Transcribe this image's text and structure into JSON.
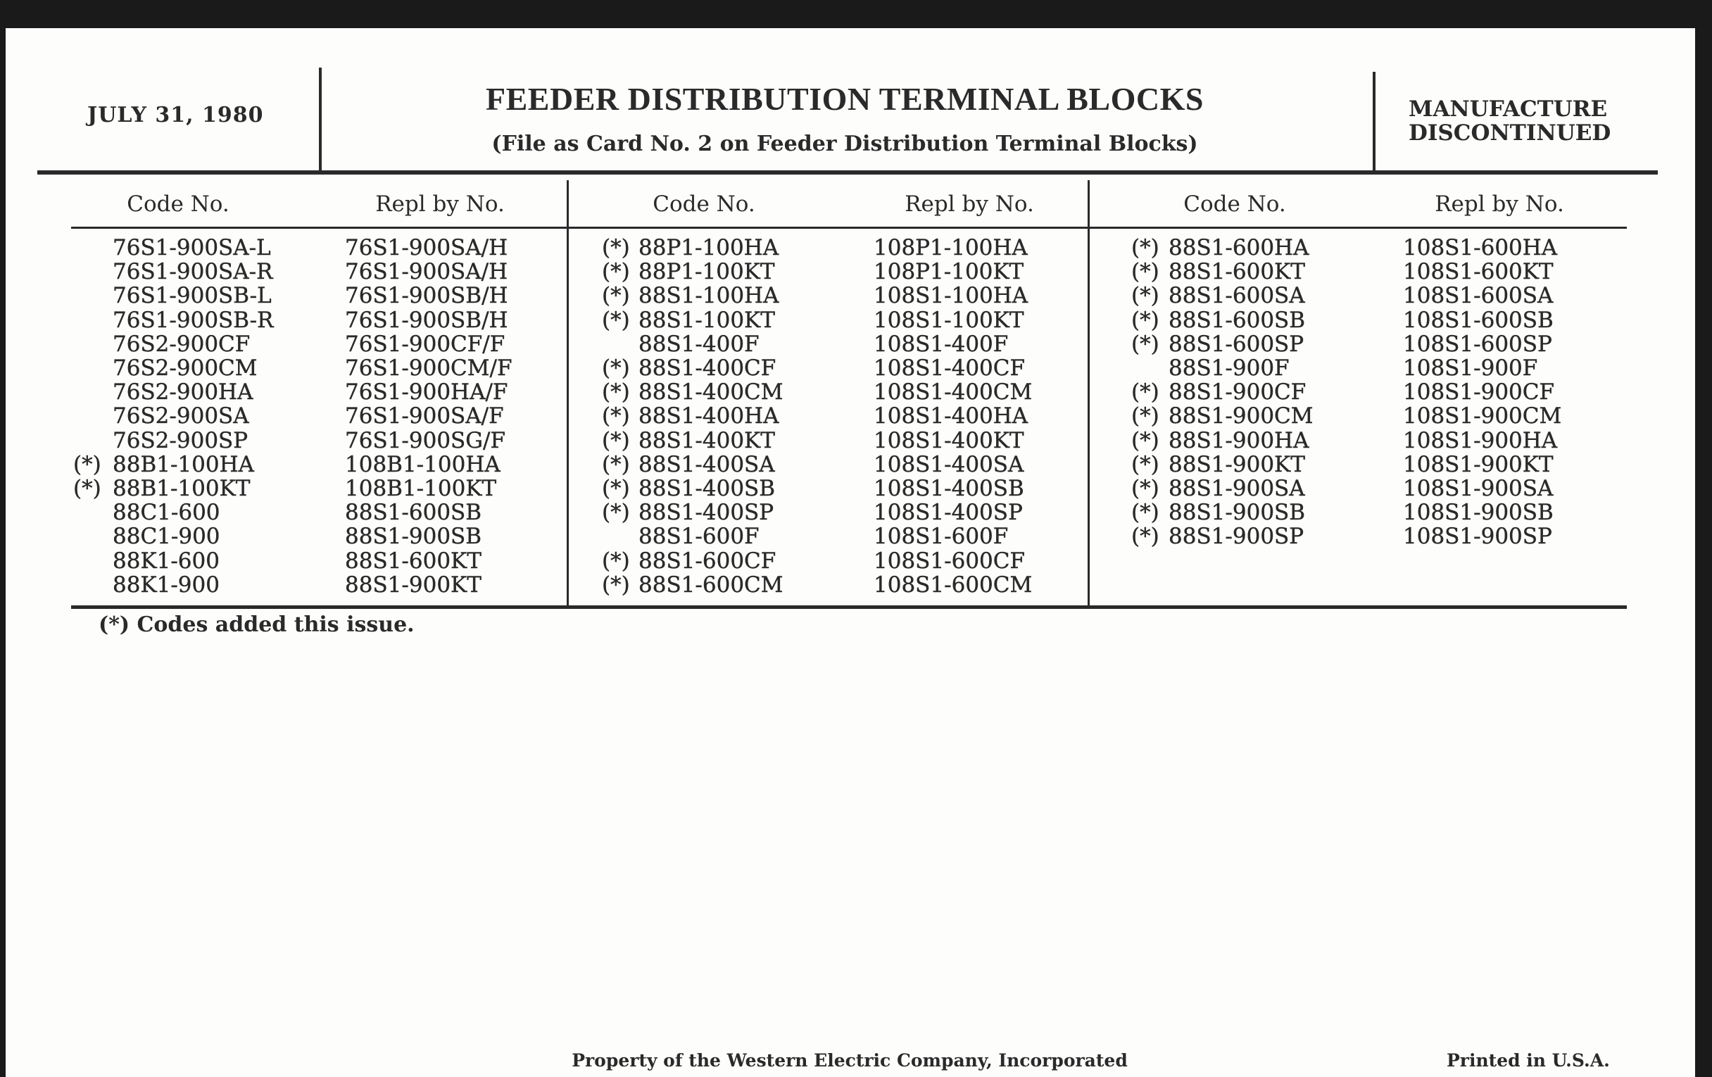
{
  "header": {
    "date": "JULY 31, 1980",
    "title": "FEEDER DISTRIBUTION TERMINAL BLOCKS",
    "subtitle": "(File as Card No. 2 on Feeder Distribution Terminal Blocks)",
    "status_line1": "MANUFACTURE",
    "status_line2": "DISCONTINUED"
  },
  "table": {
    "headers": {
      "code": "Code No.",
      "repl": "Repl by No."
    },
    "columns": [
      [
        {
          "mark": "",
          "code": "76S1-900SA-L",
          "repl": "76S1-900SA/H"
        },
        {
          "mark": "",
          "code": "76S1-900SA-R",
          "repl": "76S1-900SA/H"
        },
        {
          "mark": "",
          "code": "76S1-900SB-L",
          "repl": "76S1-900SB/H"
        },
        {
          "mark": "",
          "code": "76S1-900SB-R",
          "repl": "76S1-900SB/H"
        },
        {
          "mark": "",
          "code": "76S2-900CF",
          "repl": "76S1-900CF/F"
        },
        {
          "mark": "",
          "code": "76S2-900CM",
          "repl": "76S1-900CM/F"
        },
        {
          "mark": "",
          "code": "76S2-900HA",
          "repl": "76S1-900HA/F"
        },
        {
          "mark": "",
          "code": "76S2-900SA",
          "repl": "76S1-900SA/F"
        },
        {
          "mark": "",
          "code": "76S2-900SP",
          "repl": "76S1-900SG/F"
        },
        {
          "mark": "(*)",
          "code": "88B1-100HA",
          "repl": "108B1-100HA"
        },
        {
          "mark": "(*)",
          "code": "88B1-100KT",
          "repl": "108B1-100KT"
        },
        {
          "mark": "",
          "code": "88C1-600",
          "repl": "88S1-600SB"
        },
        {
          "mark": "",
          "code": "88C1-900",
          "repl": "88S1-900SB"
        },
        {
          "mark": "",
          "code": "88K1-600",
          "repl": "88S1-600KT"
        },
        {
          "mark": "",
          "code": "88K1-900",
          "repl": "88S1-900KT"
        }
      ],
      [
        {
          "mark": "(*)",
          "code": "88P1-100HA",
          "repl": "108P1-100HA"
        },
        {
          "mark": "(*)",
          "code": "88P1-100KT",
          "repl": "108P1-100KT"
        },
        {
          "mark": "(*)",
          "code": "88S1-100HA",
          "repl": "108S1-100HA"
        },
        {
          "mark": "(*)",
          "code": "88S1-100KT",
          "repl": "108S1-100KT"
        },
        {
          "mark": "",
          "code": "88S1-400F",
          "repl": "108S1-400F"
        },
        {
          "mark": "(*)",
          "code": "88S1-400CF",
          "repl": "108S1-400CF"
        },
        {
          "mark": "(*)",
          "code": "88S1-400CM",
          "repl": "108S1-400CM"
        },
        {
          "mark": "(*)",
          "code": "88S1-400HA",
          "repl": "108S1-400HA"
        },
        {
          "mark": "(*)",
          "code": "88S1-400KT",
          "repl": "108S1-400KT"
        },
        {
          "mark": "(*)",
          "code": "88S1-400SA",
          "repl": "108S1-400SA"
        },
        {
          "mark": "(*)",
          "code": "88S1-400SB",
          "repl": "108S1-400SB"
        },
        {
          "mark": "(*)",
          "code": "88S1-400SP",
          "repl": "108S1-400SP"
        },
        {
          "mark": "",
          "code": "88S1-600F",
          "repl": "108S1-600F"
        },
        {
          "mark": "(*)",
          "code": "88S1-600CF",
          "repl": "108S1-600CF"
        },
        {
          "mark": "(*)",
          "code": "88S1-600CM",
          "repl": "108S1-600CM"
        }
      ],
      [
        {
          "mark": "(*)",
          "code": "88S1-600HA",
          "repl": "108S1-600HA"
        },
        {
          "mark": "(*)",
          "code": "88S1-600KT",
          "repl": "108S1-600KT"
        },
        {
          "mark": "(*)",
          "code": "88S1-600SA",
          "repl": "108S1-600SA"
        },
        {
          "mark": "(*)",
          "code": "88S1-600SB",
          "repl": "108S1-600SB"
        },
        {
          "mark": "(*)",
          "code": "88S1-600SP",
          "repl": "108S1-600SP"
        },
        {
          "mark": "",
          "code": "88S1-900F",
          "repl": "108S1-900F"
        },
        {
          "mark": "(*)",
          "code": "88S1-900CF",
          "repl": "108S1-900CF"
        },
        {
          "mark": "(*)",
          "code": "88S1-900CM",
          "repl": "108S1-900CM"
        },
        {
          "mark": "(*)",
          "code": "88S1-900HA",
          "repl": "108S1-900HA"
        },
        {
          "mark": "(*)",
          "code": "88S1-900KT",
          "repl": "108S1-900KT"
        },
        {
          "mark": "(*)",
          "code": "88S1-900SA",
          "repl": "108S1-900SA"
        },
        {
          "mark": "(*)",
          "code": "88S1-900SB",
          "repl": "108S1-900SB"
        },
        {
          "mark": "(*)",
          "code": "88S1-900SP",
          "repl": "108S1-900SP"
        }
      ]
    ]
  },
  "footnote": "(*)  Codes added this issue.",
  "footer": {
    "property": "Property of the Western Electric Company, Incorporated",
    "printed": "Printed in U.S.A."
  }
}
